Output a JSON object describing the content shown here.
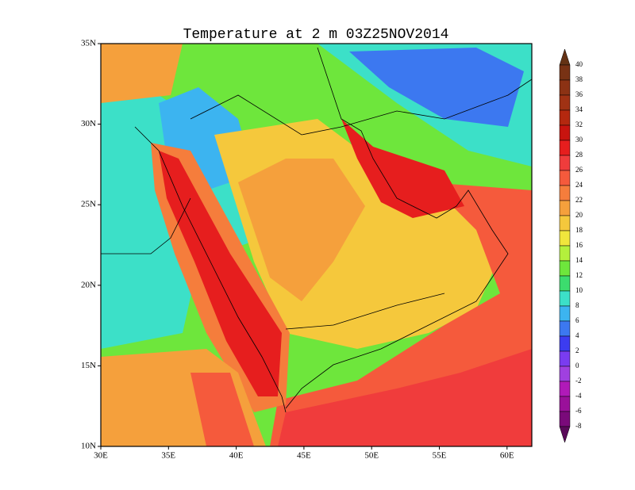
{
  "title": "Temperature at 2 m 03Z25NOV2014",
  "lat_ticks": [
    "35N",
    "30N",
    "25N",
    "20N",
    "15N",
    "10N"
  ],
  "lon_ticks": [
    "30E",
    "35E",
    "40E",
    "45E",
    "50E",
    "55E",
    "60E"
  ],
  "colorbar": {
    "labels": [
      40,
      38,
      36,
      34,
      32,
      30,
      28,
      26,
      24,
      22,
      20,
      18,
      16,
      14,
      12,
      10,
      8,
      6,
      4,
      2,
      0,
      -2,
      -4,
      -6,
      -8
    ],
    "colors": [
      "#643214",
      "#783214",
      "#8c3214",
      "#a03214",
      "#b4280f",
      "#c8140f",
      "#e61e1e",
      "#f03c3c",
      "#f55a3c",
      "#f57d3c",
      "#f5a03c",
      "#f5c83c",
      "#f0e63c",
      "#b4f03c",
      "#6ee63c",
      "#3cdc6e",
      "#3ce0c8",
      "#3cb4f0",
      "#3c78f0",
      "#3c3cf0",
      "#7a3cf0",
      "#a040e0",
      "#b01ab8",
      "#9a109a",
      "#7a0a7a",
      "#5a0a5a"
    ]
  }
}
